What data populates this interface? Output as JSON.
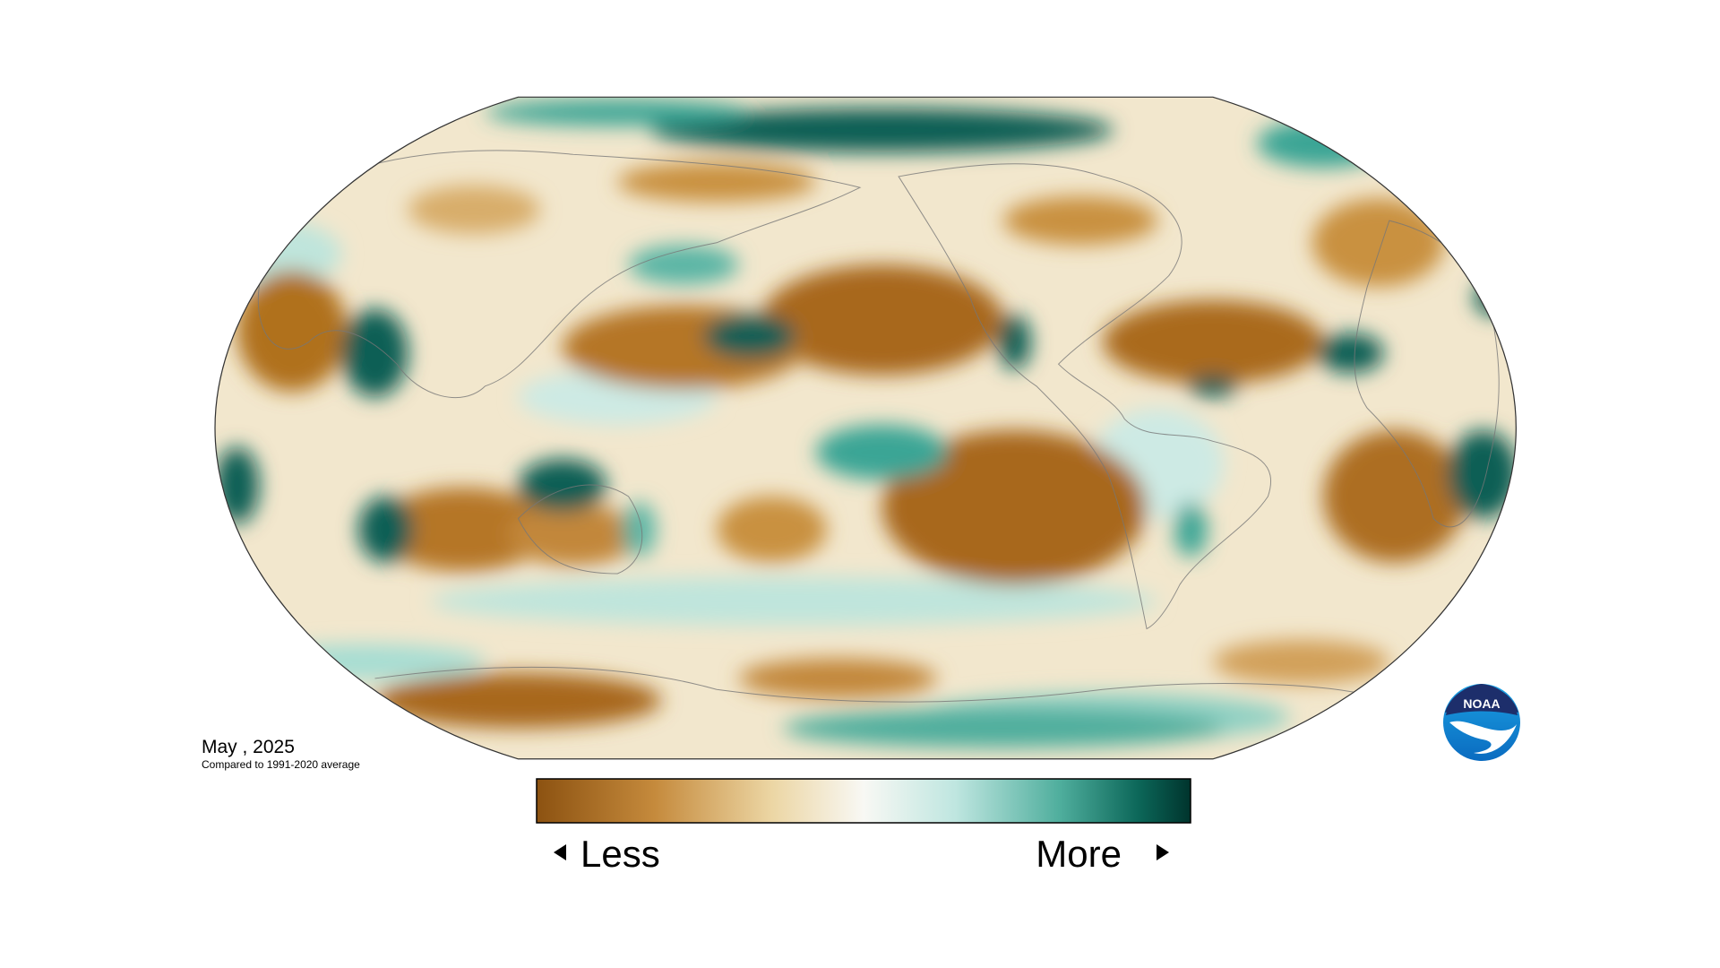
{
  "map": {
    "date": "May , 2025",
    "subtitle": "Compared to 1991-2020 average",
    "legend": {
      "low": "Less",
      "high": "More"
    },
    "logo": "NOAA"
  }
}
